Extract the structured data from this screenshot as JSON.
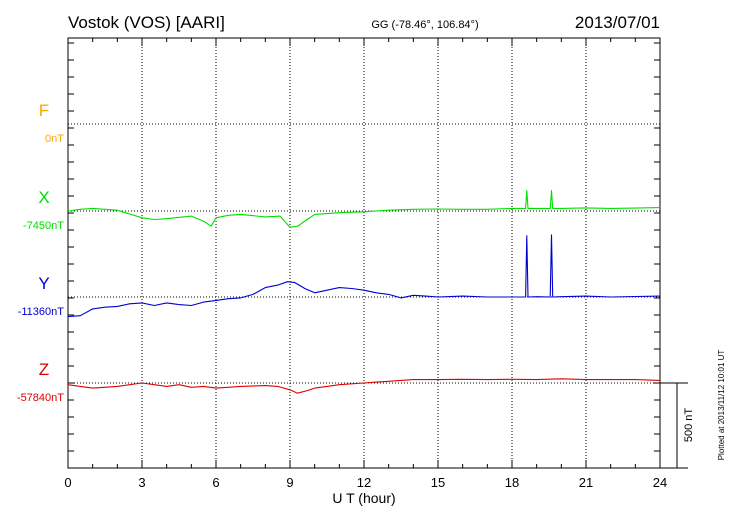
{
  "header": {
    "title": "Vostok (VOS)  [AARI]",
    "coords": "GG (-78.46°, 106.84°)",
    "date": "2013/07/01"
  },
  "side_note": "Plotted at 2013/11/12 10:01 UT",
  "scale_bar_label": "500 nT",
  "chart_data": {
    "type": "line",
    "title": "Vostok (VOS)  [AARI]",
    "xlabel": "U T (hour)",
    "ylabel": "",
    "xlim": [
      0,
      24
    ],
    "x_ticks": [
      0,
      3,
      6,
      9,
      12,
      15,
      18,
      21,
      24
    ],
    "grid": true,
    "scale_bar_nT": 500,
    "series": [
      {
        "name": "F",
        "color": "#ffa500",
        "baseline_label": "0nT",
        "baseline_nT": 0,
        "points": []
      },
      {
        "name": "X",
        "color": "#00e000",
        "baseline_label": "-7450nT",
        "baseline_nT": -7450,
        "points": [
          [
            0,
            -7450
          ],
          [
            0.5,
            -7440
          ],
          [
            1,
            -7435
          ],
          [
            2,
            -7445
          ],
          [
            3,
            -7490
          ],
          [
            3.5,
            -7500
          ],
          [
            4,
            -7495
          ],
          [
            5,
            -7480
          ],
          [
            5.5,
            -7510
          ],
          [
            5.8,
            -7540
          ],
          [
            6,
            -7490
          ],
          [
            6.5,
            -7475
          ],
          [
            7,
            -7470
          ],
          [
            8,
            -7485
          ],
          [
            8.6,
            -7480
          ],
          [
            9,
            -7545
          ],
          [
            9.3,
            -7540
          ],
          [
            9.7,
            -7500
          ],
          [
            10,
            -7470
          ],
          [
            11,
            -7460
          ],
          [
            12,
            -7455
          ],
          [
            13,
            -7445
          ],
          [
            14,
            -7440
          ],
          [
            15,
            -7438
          ],
          [
            16,
            -7440
          ],
          [
            17,
            -7440
          ],
          [
            18,
            -7435
          ],
          [
            18.55,
            -7435
          ],
          [
            18.6,
            -7330
          ],
          [
            18.65,
            -7435
          ],
          [
            19,
            -7435
          ],
          [
            19.55,
            -7435
          ],
          [
            19.6,
            -7330
          ],
          [
            19.65,
            -7435
          ],
          [
            20,
            -7435
          ],
          [
            21,
            -7432
          ],
          [
            22,
            -7435
          ],
          [
            23,
            -7433
          ],
          [
            24,
            -7430
          ]
        ]
      },
      {
        "name": "Y",
        "color": "#0000d0",
        "baseline_label": "-11360nT",
        "baseline_nT": -11360,
        "points": [
          [
            0,
            -11475
          ],
          [
            0.5,
            -11470
          ],
          [
            1,
            -11430
          ],
          [
            1.5,
            -11420
          ],
          [
            2,
            -11415
          ],
          [
            2.5,
            -11400
          ],
          [
            3,
            -11395
          ],
          [
            3.5,
            -11410
          ],
          [
            4,
            -11395
          ],
          [
            4.5,
            -11405
          ],
          [
            5,
            -11410
          ],
          [
            5.5,
            -11390
          ],
          [
            6,
            -11380
          ],
          [
            6.5,
            -11370
          ],
          [
            7,
            -11365
          ],
          [
            7.5,
            -11345
          ],
          [
            8,
            -11305
          ],
          [
            8.5,
            -11290
          ],
          [
            8.9,
            -11270
          ],
          [
            9.2,
            -11275
          ],
          [
            9.6,
            -11310
          ],
          [
            10,
            -11335
          ],
          [
            10.5,
            -11320
          ],
          [
            11,
            -11305
          ],
          [
            11.5,
            -11310
          ],
          [
            12,
            -11320
          ],
          [
            12.5,
            -11335
          ],
          [
            13,
            -11345
          ],
          [
            13.5,
            -11365
          ],
          [
            14,
            -11350
          ],
          [
            14.5,
            -11355
          ],
          [
            15,
            -11360
          ],
          [
            16,
            -11355
          ],
          [
            17,
            -11360
          ],
          [
            18,
            -11360
          ],
          [
            18.55,
            -11360
          ],
          [
            18.6,
            -11000
          ],
          [
            18.65,
            -11360
          ],
          [
            19,
            -11358
          ],
          [
            19.55,
            -11360
          ],
          [
            19.6,
            -10995
          ],
          [
            19.65,
            -11360
          ],
          [
            20,
            -11358
          ],
          [
            21,
            -11355
          ],
          [
            22,
            -11360
          ],
          [
            23,
            -11357
          ],
          [
            24,
            -11355
          ]
        ]
      },
      {
        "name": "Z",
        "color": "#e00000",
        "baseline_label": "-57840nT",
        "baseline_nT": -57840,
        "points": [
          [
            0,
            -57850
          ],
          [
            0.5,
            -57860
          ],
          [
            1,
            -57870
          ],
          [
            2,
            -57860
          ],
          [
            3,
            -57840
          ],
          [
            3.5,
            -57850
          ],
          [
            4,
            -57860
          ],
          [
            4.5,
            -57850
          ],
          [
            5,
            -57865
          ],
          [
            5.5,
            -57860
          ],
          [
            6,
            -57870
          ],
          [
            6.5,
            -57865
          ],
          [
            7,
            -57860
          ],
          [
            8,
            -57855
          ],
          [
            8.5,
            -57860
          ],
          [
            9,
            -57880
          ],
          [
            9.3,
            -57900
          ],
          [
            9.7,
            -57885
          ],
          [
            10,
            -57870
          ],
          [
            10.5,
            -57860
          ],
          [
            11,
            -57850
          ],
          [
            12,
            -57840
          ],
          [
            12.5,
            -57835
          ],
          [
            13,
            -57830
          ],
          [
            14,
            -57820
          ],
          [
            15,
            -57820
          ],
          [
            16,
            -57818
          ],
          [
            17,
            -57820
          ],
          [
            18,
            -57818
          ],
          [
            19,
            -57820
          ],
          [
            20,
            -57815
          ],
          [
            21,
            -57820
          ],
          [
            22,
            -57820
          ],
          [
            23,
            -57820
          ],
          [
            24,
            -57825
          ]
        ]
      }
    ]
  }
}
